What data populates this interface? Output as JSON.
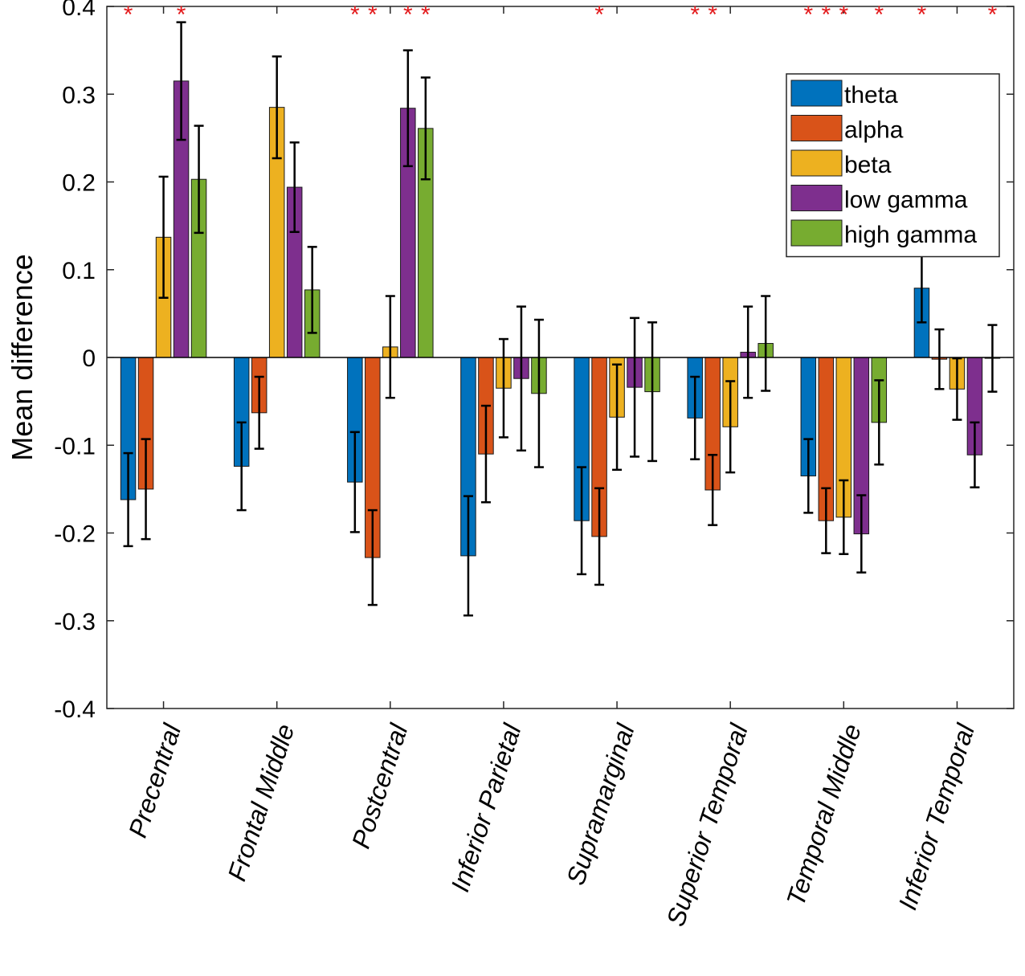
{
  "chart_data": {
    "type": "bar",
    "title": "",
    "xlabel": "",
    "ylabel": "Mean difference",
    "ylim": [
      -0.4,
      0.4
    ],
    "yticks": [
      0.4,
      0.3,
      0.2,
      0.1,
      0,
      -0.1,
      -0.2,
      -0.3,
      -0.4
    ],
    "ytick_labels": [
      "0.4",
      "0.3",
      "0.2",
      "0.1",
      "0",
      "-0.1",
      "-0.2",
      "-0.3",
      "-0.4"
    ],
    "grid": false,
    "legend_position": "top-right",
    "categories": [
      "Precentral",
      "Frontal Middle",
      "Postcentral",
      "Inferior Parietal",
      "Supramarginal",
      "Superior Temporal",
      "Temporal Middle",
      "Inferior Temporal"
    ],
    "series": [
      {
        "name": "theta",
        "color": "#0072BD",
        "values": [
          -0.162,
          -0.124,
          -0.142,
          -0.226,
          -0.186,
          -0.069,
          -0.135,
          0.079
        ],
        "errors": [
          0.053,
          0.05,
          0.057,
          0.068,
          0.061,
          0.047,
          0.042,
          0.039
        ],
        "significant": [
          true,
          false,
          true,
          false,
          false,
          true,
          true,
          true
        ]
      },
      {
        "name": "alpha",
        "color": "#D95319",
        "values": [
          -0.15,
          -0.063,
          -0.228,
          -0.11,
          -0.204,
          -0.151,
          -0.186,
          -0.002
        ],
        "errors": [
          0.057,
          0.041,
          0.054,
          0.055,
          0.055,
          0.04,
          0.037,
          0.034
        ],
        "significant": [
          false,
          false,
          true,
          false,
          true,
          true,
          true,
          false
        ]
      },
      {
        "name": "beta",
        "color": "#EDB120",
        "values": [
          0.137,
          0.285,
          0.012,
          -0.035,
          -0.068,
          -0.079,
          -0.182,
          -0.036
        ],
        "errors": [
          0.069,
          0.058,
          0.058,
          0.056,
          0.06,
          0.052,
          0.042,
          0.035
        ],
        "significant": [
          false,
          false,
          false,
          false,
          false,
          false,
          true,
          false
        ]
      },
      {
        "name": "low gamma",
        "color": "#7E2F8E",
        "values": [
          0.315,
          0.194,
          0.284,
          -0.024,
          -0.034,
          0.006,
          -0.201,
          -0.111
        ],
        "errors": [
          0.067,
          0.051,
          0.066,
          0.082,
          0.079,
          0.052,
          0.044,
          0.037
        ],
        "significant": [
          true,
          false,
          true,
          false,
          false,
          false,
          false,
          false
        ]
      },
      {
        "name": "high gamma",
        "color": "#77AC30",
        "values": [
          0.203,
          0.077,
          0.261,
          -0.041,
          -0.039,
          0.016,
          -0.074,
          -0.001
        ],
        "errors": [
          0.061,
          0.049,
          0.058,
          0.084,
          0.079,
          0.054,
          0.048,
          0.038
        ],
        "significant": [
          false,
          false,
          true,
          false,
          false,
          false,
          true,
          true
        ]
      }
    ],
    "annotation_marker": "*",
    "annotation_color": "#e31a1c"
  }
}
